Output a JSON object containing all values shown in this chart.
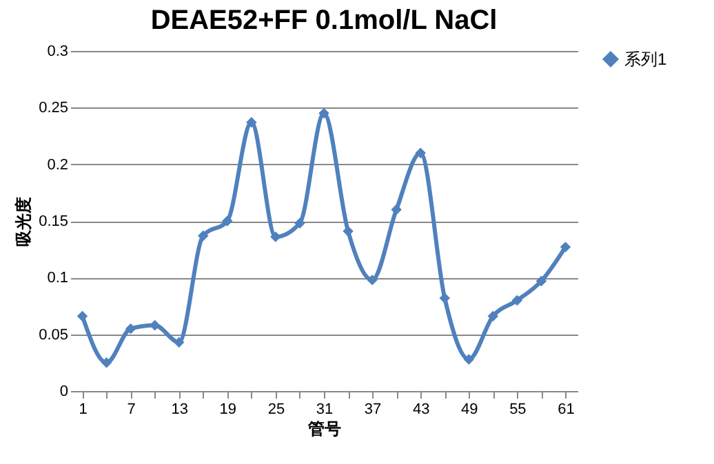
{
  "chart_data": {
    "type": "line",
    "title": "DEAE52+FF  0.1mol/L NaCl",
    "xlabel": "管号",
    "ylabel": "吸光度",
    "categories": [
      "1",
      null,
      "7",
      null,
      "13",
      null,
      "19",
      null,
      "25",
      null,
      "31",
      null,
      "37",
      null,
      "43",
      null,
      "49",
      null,
      "55",
      null,
      "61"
    ],
    "series": [
      {
        "name": "系列1",
        "color": "#4f81bd",
        "values": [
          0.066,
          0.025,
          0.055,
          0.058,
          0.043,
          0.137,
          0.15,
          0.237,
          0.136,
          0.148,
          0.245,
          0.141,
          0.098,
          0.16,
          0.21,
          0.082,
          0.028,
          0.066,
          0.08,
          0.097,
          0.127
        ]
      }
    ],
    "ylim": [
      0,
      0.3
    ],
    "yticks": [
      0,
      0.05,
      0.1,
      0.15,
      0.2,
      0.25,
      0.3
    ],
    "grid": "y",
    "legend": "right",
    "marker": "diamond",
    "line_style": "solid"
  }
}
